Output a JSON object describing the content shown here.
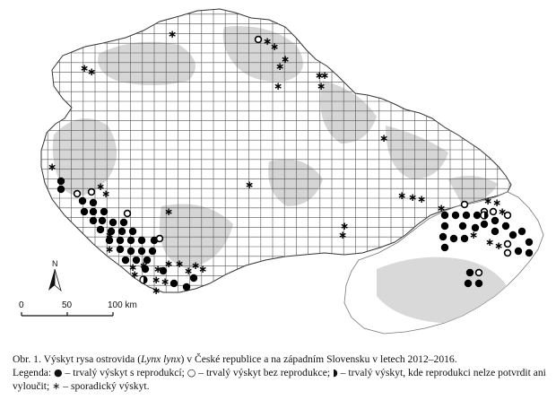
{
  "map": {
    "scale_bar": {
      "tick_labels": [
        "0",
        "50",
        "100 km"
      ]
    },
    "north_arrow": {
      "label": "N"
    },
    "legend_symbols": {
      "permanent_with_reproduction": "filled-circle",
      "permanent_without_reproduction": "open-circle",
      "permanent_reproduction_uncertain": "half-filled-circle",
      "sporadic": "asterisk"
    },
    "colors": {
      "grid_line": "#4a4a4a",
      "forest_fill": "#bdbdbd",
      "grid_fill": "#ffffff",
      "symbol": "#000000"
    }
  },
  "caption": {
    "line1_prefix": "Obr. 1. Výskyt rysa ostrovida (",
    "line1_species": "Lynx lynx",
    "line1_suffix": ") v České republice a na západním Slovensku v letech 2012–2016.",
    "line2_legend_label": "Legenda: ",
    "sym_filled": "●",
    "item_filled": " – trvalý výskyt s reprodukcí; ",
    "sym_open": "○",
    "item_open": " – trvalý výskyt bez reprodukce; ",
    "sym_half": "◗",
    "item_half": " – trvalý výskyt, kde reprodukci nelze potvrdit ani vyloučit; ",
    "sym_star": "∗",
    "item_star": " – sporadický výskyt."
  }
}
